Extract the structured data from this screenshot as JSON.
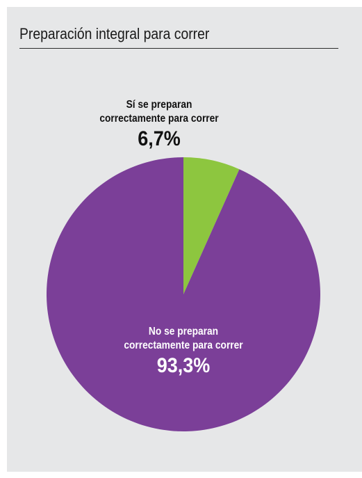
{
  "chart_data": {
    "type": "pie",
    "title": "Preparación integral para correr",
    "slices": [
      {
        "label_line1": "Sí se preparan",
        "label_line2": "correctamente para correr",
        "value": 6.7,
        "value_label": "6,7%",
        "color": "#8dc63f"
      },
      {
        "label_line1": "No se preparan",
        "label_line2": "correctamente para correr",
        "value": 93.3,
        "value_label": "93,3%",
        "color": "#7b3f98"
      }
    ],
    "start_angle": "top, clockwise",
    "legend": "none"
  }
}
